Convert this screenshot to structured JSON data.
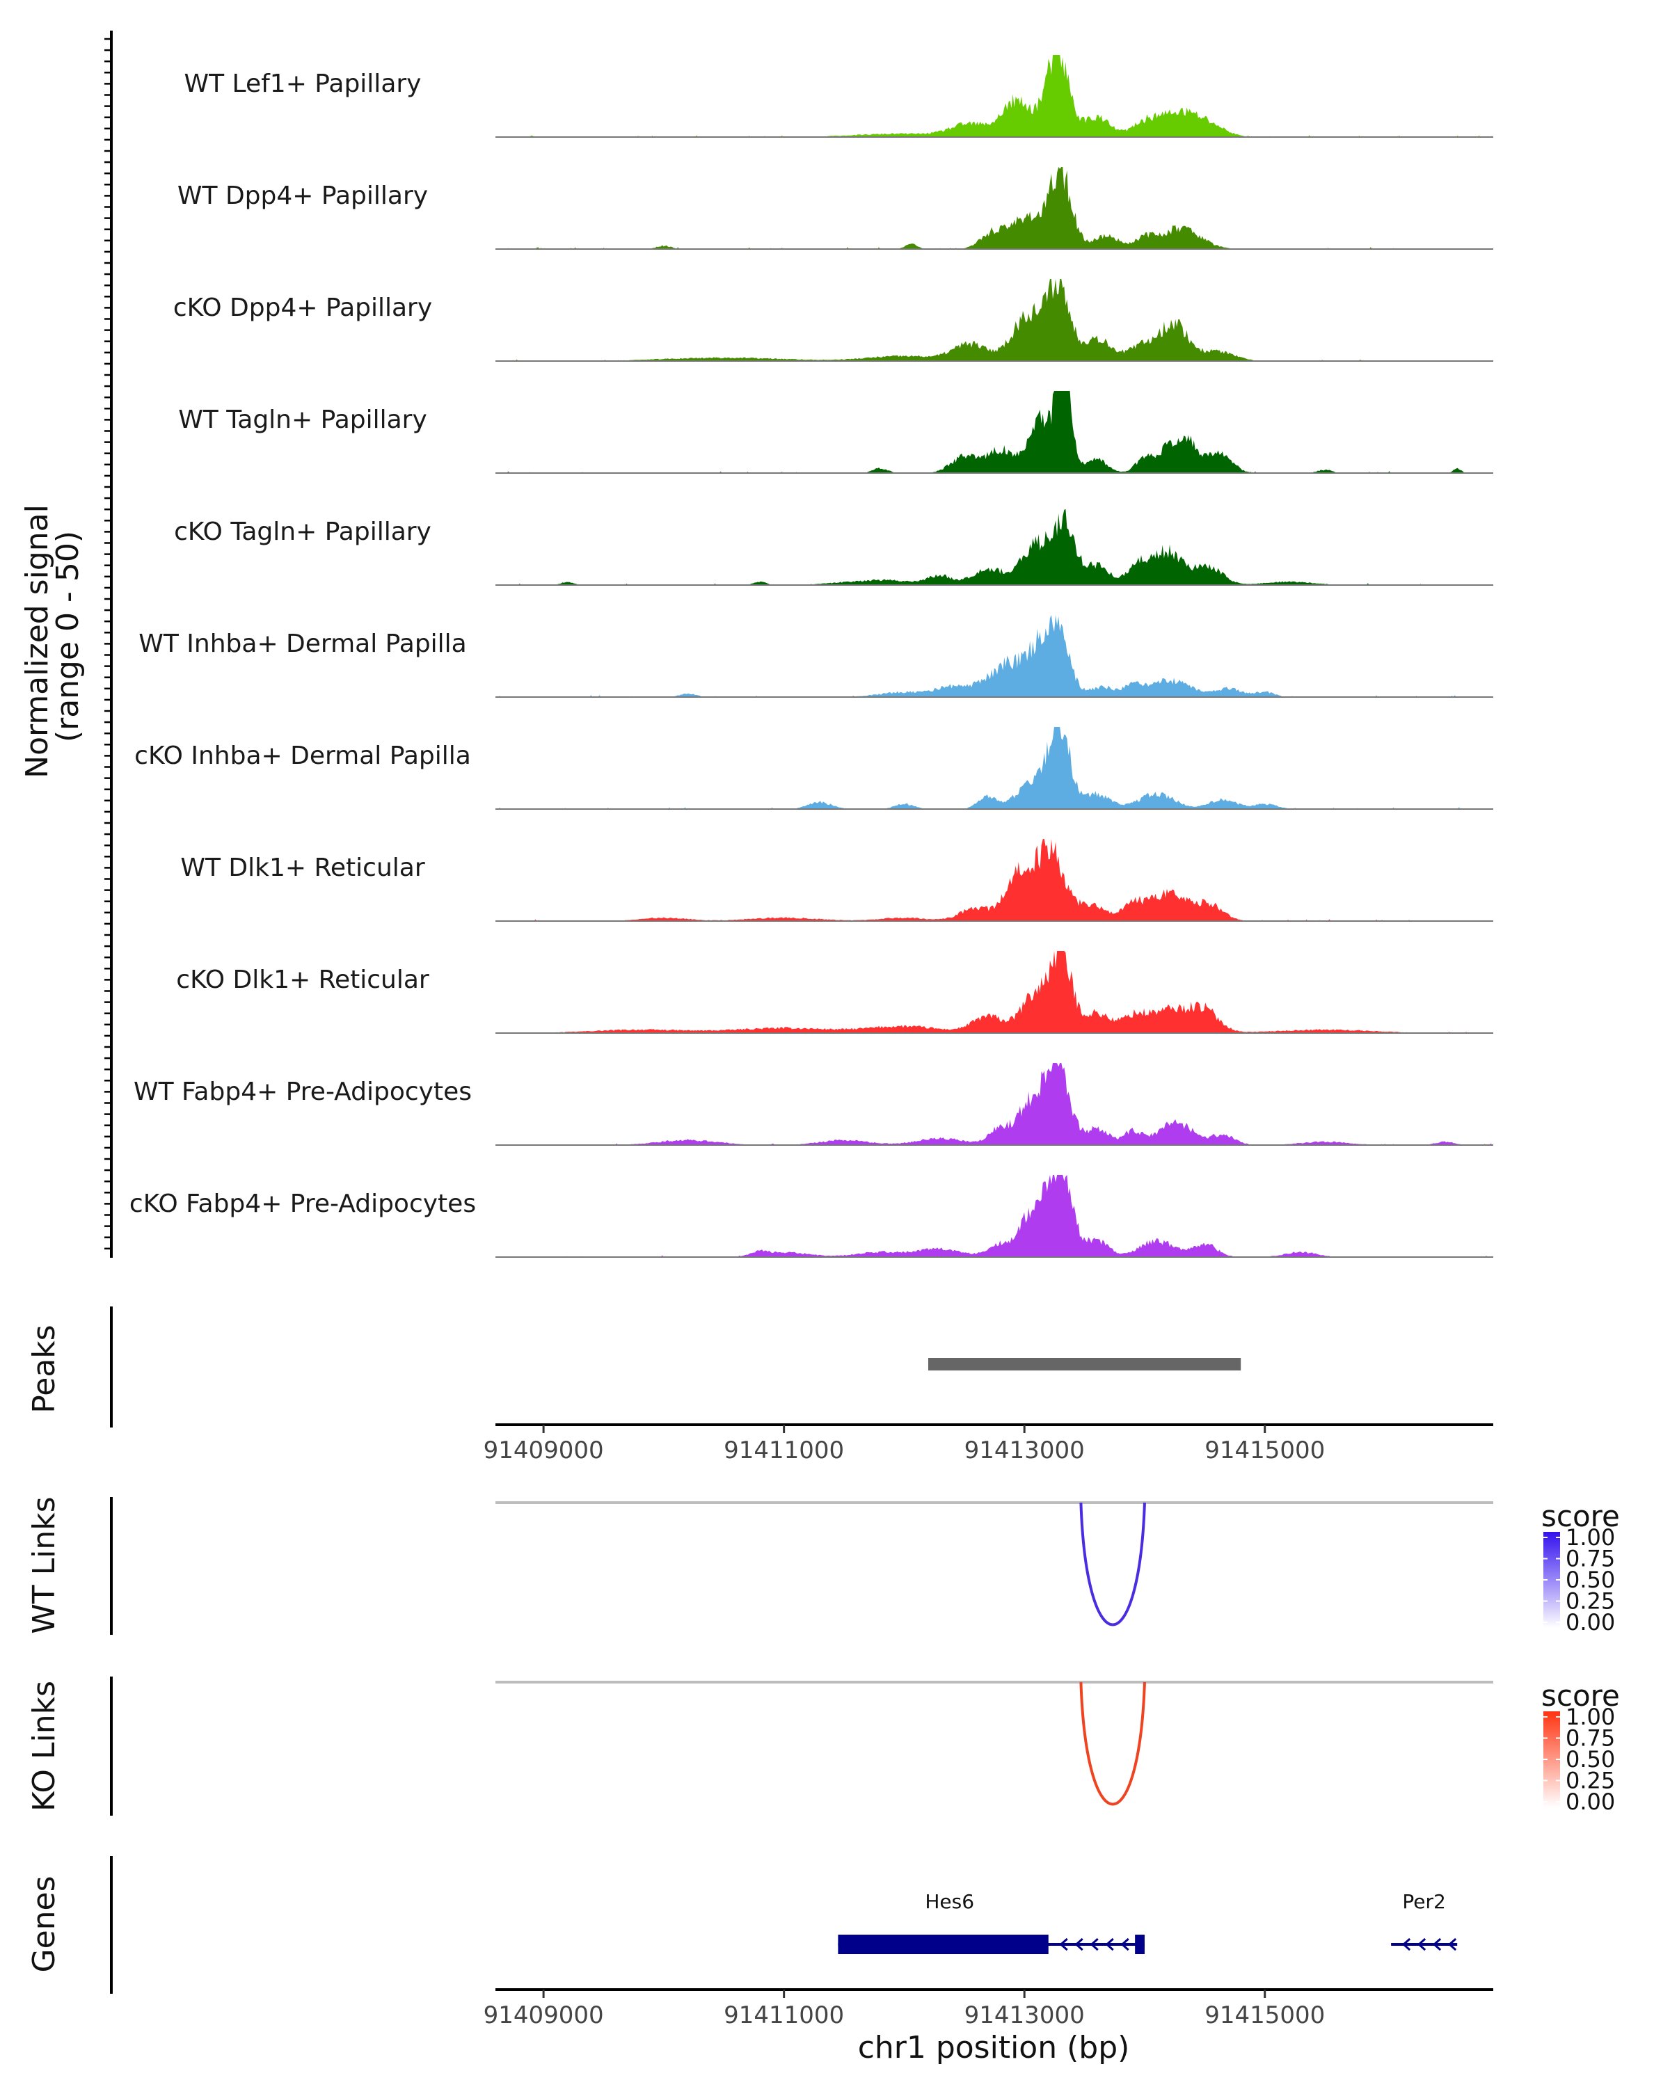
{
  "chart_data": {
    "type": "area",
    "title": "",
    "region": {
      "chrom": "chr1",
      "start": 91408600,
      "end": 91416900
    },
    "coverage": {
      "ylabel": "Normalized signal\n(range 0 - 50)",
      "ylabel_lines": [
        "Normalized signal",
        "(range 0 - 50)"
      ],
      "ylim": [
        0,
        50
      ],
      "tracks": [
        {
          "name": "WT Lef1+ Papillary",
          "color": "#66CC00",
          "seed": 11,
          "peaks": [
            [
              91413280,
              48,
              90
            ],
            [
              91413000,
              14,
              170
            ],
            [
              91414300,
              14,
              150
            ],
            [
              91414020,
              9,
              120
            ],
            [
              91413600,
              12,
              110
            ],
            [
              91412540,
              7,
              150
            ],
            [
              91412900,
              9,
              90
            ],
            [
              91414550,
              6,
              130
            ],
            [
              91412000,
              2,
              400
            ]
          ]
        },
        {
          "name": "WT Dpp4+ Papillary",
          "color": "#458B00",
          "seed": 23,
          "peaks": [
            [
              91413300,
              47,
              90
            ],
            [
              91413020,
              20,
              120
            ],
            [
              91412740,
              10,
              100
            ],
            [
              91414300,
              13,
              160
            ],
            [
              91413680,
              8,
              110
            ],
            [
              91414000,
              6,
              80
            ],
            [
              91410000,
              2,
              60
            ],
            [
              91412060,
              3,
              50
            ]
          ]
        },
        {
          "name": "cKO Dpp4+ Papillary",
          "color": "#458B00",
          "seed": 37,
          "peaks": [
            [
              91413280,
              48,
              90
            ],
            [
              91413050,
              26,
              100
            ],
            [
              91413600,
              14,
              120
            ],
            [
              91414250,
              22,
              110
            ],
            [
              91414000,
              10,
              120
            ],
            [
              91412550,
              10,
              140
            ],
            [
              91412900,
              8,
              100
            ],
            [
              91414600,
              6,
              140
            ],
            [
              91412000,
              3,
              300
            ],
            [
              91410500,
              2,
              500
            ]
          ]
        },
        {
          "name": "WT Tagln+ Papillary",
          "color": "#006400",
          "seed": 41,
          "peaks": [
            [
              91413330,
              58,
              60
            ],
            [
              91413150,
              32,
              110
            ],
            [
              91412800,
              14,
              110
            ],
            [
              91412500,
              10,
              110
            ],
            [
              91413600,
              8,
              90
            ],
            [
              91414300,
              22,
              150
            ],
            [
              91414000,
              8,
              70
            ],
            [
              91414650,
              10,
              90
            ],
            [
              91411800,
              3,
              60
            ],
            [
              91415500,
              2,
              60
            ],
            [
              91416600,
              3,
              30
            ]
          ]
        },
        {
          "name": "cKO Tagln+ Papillary",
          "color": "#006400",
          "seed": 53,
          "peaks": [
            [
              91413330,
              36,
              90
            ],
            [
              91413100,
              24,
              120
            ],
            [
              91413600,
              12,
              100
            ],
            [
              91412700,
              10,
              130
            ],
            [
              91414200,
              20,
              140
            ],
            [
              91413950,
              10,
              100
            ],
            [
              91414550,
              10,
              110
            ],
            [
              91412300,
              5,
              100
            ],
            [
              91411800,
              3,
              300
            ],
            [
              91415200,
              2,
              200
            ],
            [
              91409200,
              2,
              50
            ],
            [
              91410800,
              2,
              50
            ]
          ]
        },
        {
          "name": "WT Inhba+ Dermal Papilla",
          "color": "#5DADE2",
          "seed": 67,
          "peaks": [
            [
              91413260,
              44,
              100
            ],
            [
              91413050,
              24,
              110
            ],
            [
              91412700,
              10,
              110
            ],
            [
              91412400,
              6,
              130
            ],
            [
              91412850,
              12,
              80
            ],
            [
              91413650,
              6,
              110
            ],
            [
              91414200,
              10,
              180
            ],
            [
              91413900,
              5,
              70
            ],
            [
              91414700,
              5,
              110
            ],
            [
              91412000,
              3,
              200
            ],
            [
              91415000,
              3,
              80
            ],
            [
              91410200,
              2,
              70
            ]
          ]
        },
        {
          "name": "cKO Inhba+ Dermal Papilla",
          "color": "#5DADE2",
          "seed": 79,
          "peaks": [
            [
              91413300,
              48,
              80
            ],
            [
              91413130,
              20,
              100
            ],
            [
              91412700,
              8,
              80
            ],
            [
              91412950,
              7,
              70
            ],
            [
              91413600,
              9,
              110
            ],
            [
              91414100,
              9,
              150
            ],
            [
              91414650,
              6,
              110
            ],
            [
              91411300,
              4,
              100
            ],
            [
              91412000,
              3,
              80
            ],
            [
              91415000,
              3,
              100
            ]
          ]
        },
        {
          "name": "WT Dlk1+ Reticular",
          "color": "#FF3030",
          "seed": 83,
          "peaks": [
            [
              91413220,
              42,
              110
            ],
            [
              91413000,
              20,
              110
            ],
            [
              91412600,
              8,
              130
            ],
            [
              91412900,
              12,
              90
            ],
            [
              91413550,
              10,
              120
            ],
            [
              91414200,
              16,
              170
            ],
            [
              91413900,
              8,
              100
            ],
            [
              91414550,
              9,
              110
            ],
            [
              91410000,
              2,
              200
            ],
            [
              91411000,
              2,
              300
            ],
            [
              91412000,
              2,
              200
            ]
          ]
        },
        {
          "name": "cKO Dlk1+ Reticular",
          "color": "#FF3030",
          "seed": 97,
          "peaks": [
            [
              91413300,
              48,
              90
            ],
            [
              91413080,
              22,
              110
            ],
            [
              91412700,
              10,
              130
            ],
            [
              91413600,
              12,
              110
            ],
            [
              91414200,
              14,
              180
            ],
            [
              91414500,
              12,
              120
            ],
            [
              91413900,
              8,
              100
            ],
            [
              91412000,
              4,
              300
            ],
            [
              91411000,
              3,
              400
            ],
            [
              91409800,
              2,
              400
            ],
            [
              91415500,
              2,
              400
            ]
          ]
        },
        {
          "name": "WT Fabp4+ Pre-Adipocytes",
          "color": "#B03CF0",
          "seed": 101,
          "peaks": [
            [
              91413280,
              52,
              90
            ],
            [
              91413070,
              28,
              110
            ],
            [
              91412800,
              10,
              90
            ],
            [
              91413600,
              10,
              100
            ],
            [
              91414260,
              14,
              140
            ],
            [
              91413900,
              8,
              80
            ],
            [
              91414650,
              6,
              100
            ],
            [
              91412300,
              4,
              200
            ],
            [
              91410200,
              3,
              250
            ],
            [
              91411500,
              3,
              200
            ],
            [
              91415500,
              2,
              200
            ],
            [
              91416500,
              2,
              80
            ]
          ]
        },
        {
          "name": "cKO Fabp4+ Pre-Adipocytes",
          "color": "#B03CF0",
          "seed": 113,
          "peaks": [
            [
              91413300,
              56,
              90
            ],
            [
              91413080,
              30,
              100
            ],
            [
              91412800,
              8,
              100
            ],
            [
              91413600,
              10,
              100
            ],
            [
              91414100,
              10,
              140
            ],
            [
              91414500,
              8,
              100
            ],
            [
              91412300,
              5,
              180
            ],
            [
              91411000,
              3,
              200
            ],
            [
              91411800,
              3,
              200
            ],
            [
              91415300,
              3,
              130
            ],
            [
              91410800,
              2,
              60
            ]
          ]
        }
      ]
    },
    "peaks_track": {
      "label": "Peaks",
      "intervals": [
        [
          91412200,
          91414800
        ]
      ],
      "color": "#666666"
    },
    "x_axis": {
      "xlabel": "chr1 position (bp)",
      "ticks": [
        91409000,
        91411000,
        91413000,
        91415000
      ],
      "tick_labels": [
        "91409000",
        "91411000",
        "91413000",
        "91415000"
      ]
    },
    "links": [
      {
        "label": "WT Links",
        "from": 91413470,
        "to": 91414000,
        "score": 0.85,
        "color": "#4B2CE0",
        "legend_title": "score",
        "legend_low": "#FFFFFF",
        "legend_high": "#3311EE"
      },
      {
        "label": "KO Links",
        "from": 91413470,
        "to": 91414000,
        "score": 0.85,
        "color": "#EE4422",
        "legend_title": "score",
        "legend_low": "#FFFFFF",
        "legend_high": "#FF3311"
      }
    ],
    "legend_ticks": [
      "1.00",
      "0.75",
      "0.50",
      "0.25",
      "0.00"
    ],
    "genes": {
      "label": "Genes",
      "color": "#00008B",
      "items": [
        {
          "name": "Hes6",
          "start": 91411450,
          "end": 91414000,
          "strand": "-",
          "thick_start": 91411450,
          "thick_end": 91413200,
          "exon_end_start": 91413920
        },
        {
          "name": "Per2",
          "start": 91416050,
          "end": 91416600,
          "strand": "-",
          "thick_start": null,
          "thick_end": null,
          "exon_end_start": null
        }
      ]
    }
  }
}
